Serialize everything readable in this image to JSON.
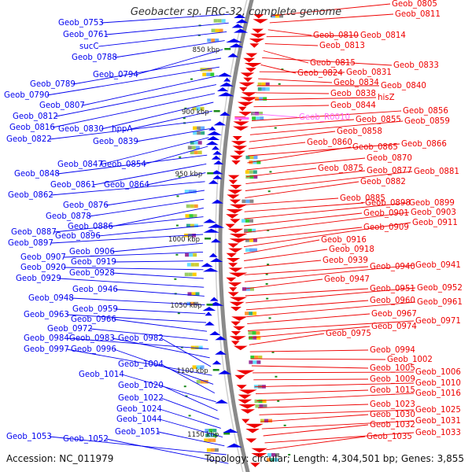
{
  "title": "Geobacter sp. FRC-32, complete genome",
  "accession_text": "Accession: NC_011979",
  "topology_text": "Topology: circular; Length: 4,304,501 bp; Genes: 3,855",
  "colors": {
    "left_strand": "#0000ee",
    "right_strand": "#ee0000",
    "backbone": "#8a8a8a",
    "rna": "#ff66ff",
    "tick": "#1a8a1a"
  },
  "kbp_marks": [
    "850 kbp",
    "900 kbp",
    "950 kbp",
    "1000 kbp",
    "1050 kbp",
    "1100 kbp",
    "1150 kbp"
  ],
  "left_labels": [
    "Geob_0753",
    "Geob_0761",
    "sucC",
    "Geob_0788",
    "Geob_0794",
    "Geob_0789",
    "Geob_0790",
    "Geob_0807",
    "Geob_0812",
    "Geob_0816",
    "Geob_0830",
    "hppA",
    "Geob_0822",
    "Geob_0839",
    "Geob_0847",
    "Geob_0854",
    "Geob_0848",
    "Geob_0861",
    "Geob_0864",
    "Geob_0862",
    "Geob_0876",
    "Geob_0878",
    "Geob_0886",
    "Geob_0887",
    "Geob_0896",
    "Geob_0897",
    "Geob_0906",
    "Geob_0907",
    "Geob_0919",
    "Geob_0920",
    "Geob_0928",
    "Geob_0929",
    "Geob_0946",
    "Geob_0948",
    "Geob_0959",
    "Geob_0963",
    "Geob_0966",
    "Geob_0972",
    "Geob_0984",
    "Geob_0983",
    "Geob_0982",
    "Geob_0997",
    "Geob_0996",
    "Geob_1004",
    "Geob_1014",
    "Geob_1020",
    "Geob_1022",
    "Geob_1024",
    "Geob_1044",
    "Geob_1051",
    "Geob_1053",
    "Geob_1052"
  ],
  "right_labels": [
    "Geob_0805",
    "Geob_0811",
    "Geob_0810",
    "Geob_0814",
    "Geob_0813",
    "Geob_0815",
    "Geob_0833",
    "Geob_0824",
    "Geob_0831",
    "Geob_0834",
    "Geob_0840",
    "Geob_0838",
    "hisZ",
    "Geob_0844",
    "Geob_R0010",
    "Geob_0856",
    "Geob_0855",
    "Geob_0859",
    "Geob_0858",
    "Geob_0860",
    "Geob_0866",
    "Geob_0865",
    "Geob_0870",
    "Geob_0875",
    "Geob_0877",
    "Geob_0881",
    "Geob_0882",
    "Geob_0885",
    "Geob_0898",
    "Geob_0899",
    "Geob_0901",
    "Geob_0903",
    "Geob_0909",
    "Geob_0911",
    "Geob_0916",
    "Geob_0918",
    "Geob_0939",
    "Geob_0940",
    "Geob_0941",
    "Geob_0947",
    "Geob_0951",
    "Geob_0952",
    "Geob_0960",
    "Geob_0961",
    "Geob_0967",
    "Geob_0971",
    "Geob_0974",
    "Geob_0975",
    "Geob_0994",
    "Geob_1002",
    "Geob_1005",
    "Geob_1006",
    "Geob_1009",
    "Geob_1010",
    "Geob_1015",
    "Geob_1016",
    "Geob_1023",
    "Geob_1025",
    "Geob_1030",
    "Geob_1031",
    "Geob_1032",
    "Geob_1033",
    "Geob_1035"
  ]
}
